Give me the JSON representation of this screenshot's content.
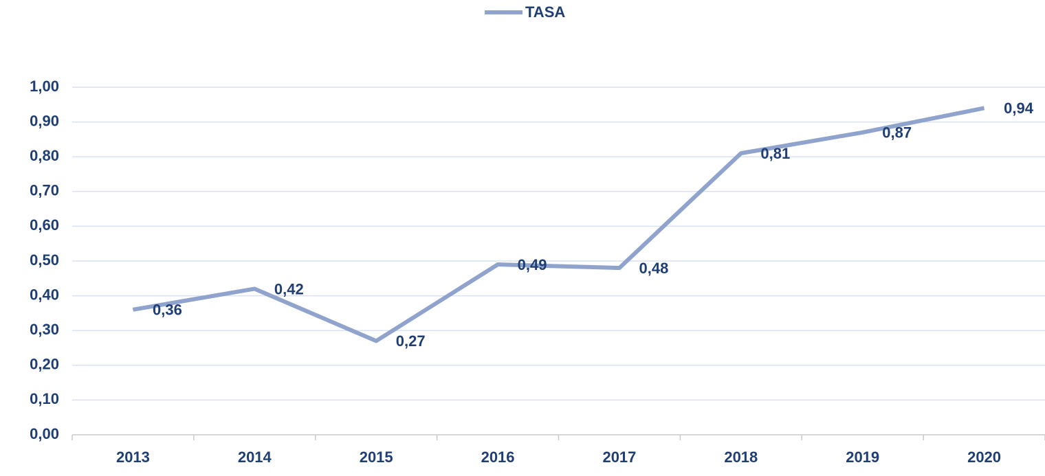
{
  "chart_data": {
    "type": "line",
    "categories": [
      "2013",
      "2014",
      "2015",
      "2016",
      "2017",
      "2018",
      "2019",
      "2020"
    ],
    "series": [
      {
        "name": "TASA",
        "color": "#8fa3cc",
        "values": [
          0.36,
          0.42,
          0.27,
          0.49,
          0.48,
          0.81,
          0.87,
          0.94
        ],
        "value_labels": [
          "0,36",
          "0,42",
          "0,27",
          "0,49",
          "0,48",
          "0,81",
          "0,87",
          "0,94"
        ]
      }
    ],
    "ylim": [
      0,
      1
    ],
    "yticks": [
      {
        "value": 0,
        "label": "0,00"
      },
      {
        "value": 0.1,
        "label": "0,10"
      },
      {
        "value": 0.2,
        "label": "0,20"
      },
      {
        "value": 0.3,
        "label": "0,30"
      },
      {
        "value": 0.4,
        "label": "0,40"
      },
      {
        "value": 0.5,
        "label": "0,50"
      },
      {
        "value": 0.6,
        "label": "0,60"
      },
      {
        "value": 0.7,
        "label": "0,70"
      },
      {
        "value": 0.8,
        "label": "0,80"
      },
      {
        "value": 0.9,
        "label": "0,90"
      },
      {
        "value": 1,
        "label": "1,00"
      }
    ],
    "grid": true,
    "legend": "top"
  }
}
